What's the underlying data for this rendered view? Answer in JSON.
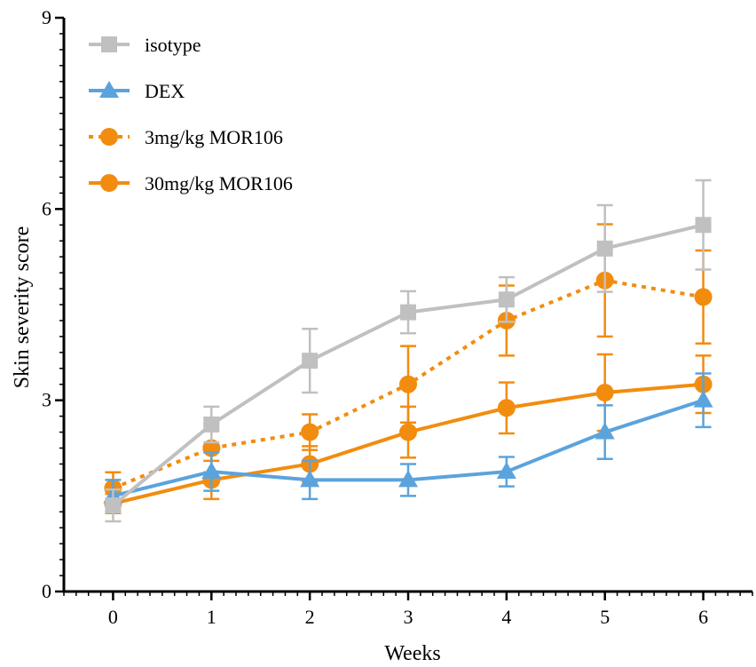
{
  "chart_data": {
    "type": "line",
    "title": "",
    "xlabel": "Weeks",
    "ylabel": "Skin severity score",
    "x": [
      0,
      1,
      2,
      3,
      4,
      5,
      6
    ],
    "xlim": [
      -0.5,
      6.5
    ],
    "ylim": [
      0,
      9
    ],
    "xticks": [
      "0",
      "1",
      "2",
      "3",
      "4",
      "5",
      "6"
    ],
    "yticks": [
      "0",
      "3",
      "6",
      "9"
    ],
    "grid": false,
    "legend_position": "top-left",
    "series": [
      {
        "name": "isotype",
        "color": "#c0c0c0",
        "marker": "square",
        "line_style": "solid",
        "values": [
          1.35,
          2.62,
          3.62,
          4.38,
          4.58,
          5.38,
          5.75
        ],
        "errors": [
          0.25,
          0.28,
          0.5,
          0.33,
          0.35,
          0.68,
          0.7
        ]
      },
      {
        "name": "DEX",
        "color": "#5ba3dc",
        "marker": "triangle",
        "line_style": "solid",
        "values": [
          1.5,
          1.88,
          1.75,
          1.75,
          1.88,
          2.5,
          3.0
        ],
        "errors": [
          0.25,
          0.3,
          0.3,
          0.25,
          0.23,
          0.42,
          0.42
        ]
      },
      {
        "name": "3mg/kg MOR106",
        "color": "#f28c0f",
        "marker": "circle",
        "line_style": "dotted",
        "values": [
          1.62,
          2.25,
          2.5,
          3.25,
          4.25,
          4.88,
          4.62
        ],
        "errors": [
          0.25,
          0.38,
          0.28,
          0.6,
          0.55,
          0.88,
          0.73
        ]
      },
      {
        "name": "30mg/kg MOR106",
        "color": "#f28c0f",
        "marker": "circle",
        "line_style": "solid",
        "values": [
          1.38,
          1.75,
          2.0,
          2.5,
          2.88,
          3.12,
          3.25
        ],
        "errors": [
          0.15,
          0.3,
          0.28,
          0.4,
          0.4,
          0.6,
          0.45
        ]
      }
    ]
  }
}
